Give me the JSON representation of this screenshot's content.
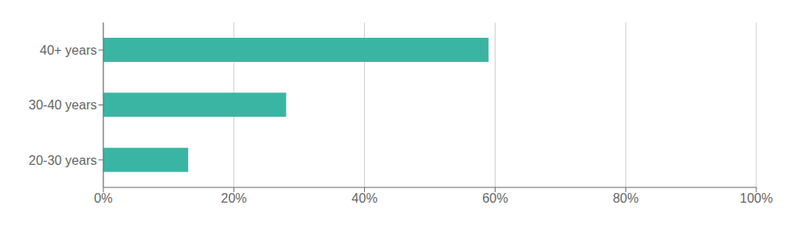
{
  "chart_data": {
    "type": "bar",
    "orientation": "horizontal",
    "categories": [
      "40+ years",
      "30-40 years",
      "20-30 years"
    ],
    "values": [
      59,
      28,
      13
    ],
    "color": "#3ab5a4",
    "xlim": [
      0,
      100
    ],
    "xticks": [
      {
        "value": 0,
        "label": "0%"
      },
      {
        "value": 20,
        "label": "20%"
      },
      {
        "value": 40,
        "label": "40%"
      },
      {
        "value": 60,
        "label": "60%"
      },
      {
        "value": 80,
        "label": "80%"
      },
      {
        "value": 100,
        "label": "100%"
      }
    ],
    "grid": true
  }
}
